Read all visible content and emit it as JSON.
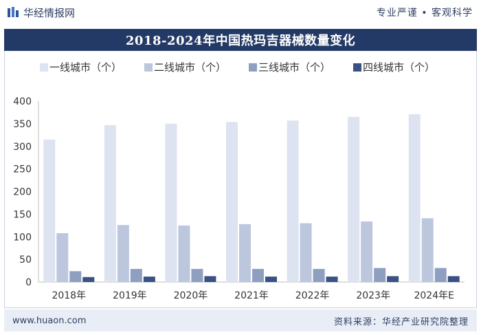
{
  "header": {
    "brand": "华经情报网",
    "slogan": "专业严谨 • 客观科学"
  },
  "title": "2018-2024年中国热玛吉器械数量变化",
  "footer": {
    "url": "www.huaon.com",
    "source": "资料来源：华经产业研究院整理"
  },
  "colors": {
    "header_bg": "#243a66",
    "series": [
      "#dde3f0",
      "#bcc7dd",
      "#8e9fc0",
      "#3a5184"
    ]
  },
  "chart_data": {
    "type": "bar",
    "categories": [
      "2018年",
      "2019年",
      "2020年",
      "2021年",
      "2022年",
      "2023年",
      "2024年E"
    ],
    "series": [
      {
        "name": "一线城市（个）",
        "values": [
          315,
          347,
          350,
          354,
          357,
          365,
          371
        ]
      },
      {
        "name": "二线城市（个）",
        "values": [
          108,
          126,
          125,
          128,
          130,
          134,
          141
        ]
      },
      {
        "name": "三线城市（个）",
        "values": [
          24,
          29,
          29,
          29,
          29,
          31,
          31
        ]
      },
      {
        "name": "四线城市（个）",
        "values": [
          11,
          12,
          13,
          12,
          12,
          13,
          13
        ]
      }
    ],
    "ylim": [
      0,
      400
    ],
    "yticks": [
      0,
      50,
      100,
      150,
      200,
      250,
      300,
      350,
      400
    ],
    "grid": false,
    "legend": "top-left"
  }
}
